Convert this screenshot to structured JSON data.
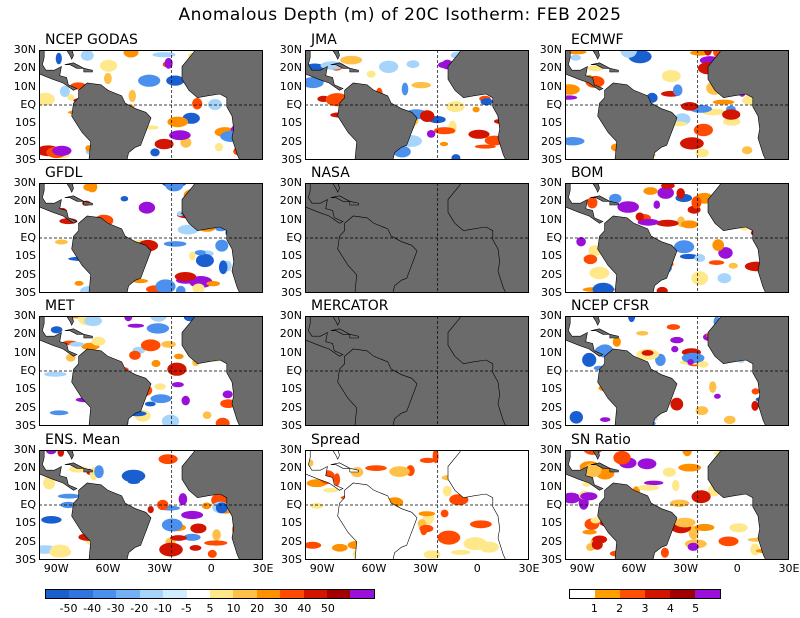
{
  "title": "Anomalous Depth (m) of 20C Isotherm: FEB 2025",
  "chart_data": {
    "type": "heatmap",
    "title": "Anomalous Depth (m) of 20C Isotherm: FEB 2025",
    "panels": [
      {
        "name": "NCEP GODAS",
        "has_data": true
      },
      {
        "name": "JMA",
        "has_data": true
      },
      {
        "name": "ECMWF",
        "has_data": true
      },
      {
        "name": "GFDL",
        "has_data": true
      },
      {
        "name": "NASA",
        "has_data": false
      },
      {
        "name": "BOM",
        "has_data": true
      },
      {
        "name": "MET",
        "has_data": true
      },
      {
        "name": "MERCATOR",
        "has_data": false
      },
      {
        "name": "NCEP CFSR",
        "has_data": true
      },
      {
        "name": "ENS. Mean",
        "has_data": true
      },
      {
        "name": "Spread",
        "has_data": true
      },
      {
        "name": "SN Ratio",
        "has_data": true
      }
    ],
    "lat_ticks": [
      "30N",
      "20N",
      "10N",
      "EQ",
      "10S",
      "20S",
      "30S"
    ],
    "lon_ticks": [
      "90W",
      "60W",
      "30W",
      "0",
      "30E"
    ],
    "lat_range": [
      -30,
      30
    ],
    "lon_range": [
      -100,
      30
    ],
    "anomaly_colorbar": {
      "labels": [
        "-50",
        "-40",
        "-30",
        "-20",
        "-10",
        "-5",
        "5",
        "10",
        "20",
        "30",
        "40",
        "50"
      ],
      "colors": [
        "#1a5fd0",
        "#2f74e0",
        "#4a90ec",
        "#74b1f4",
        "#a6d4fb",
        "#cfeeff",
        "#ffffff",
        "#ffe88a",
        "#ffc048",
        "#ff9000",
        "#ff4a00",
        "#d21400",
        "#a00000",
        "#9a10d8"
      ]
    },
    "snr_colorbar": {
      "labels": [
        "1",
        "2",
        "3",
        "4",
        "5"
      ],
      "colors": [
        "#ffffff",
        "#ffa000",
        "#ff5000",
        "#d21400",
        "#a00000",
        "#9a10d8"
      ]
    }
  }
}
